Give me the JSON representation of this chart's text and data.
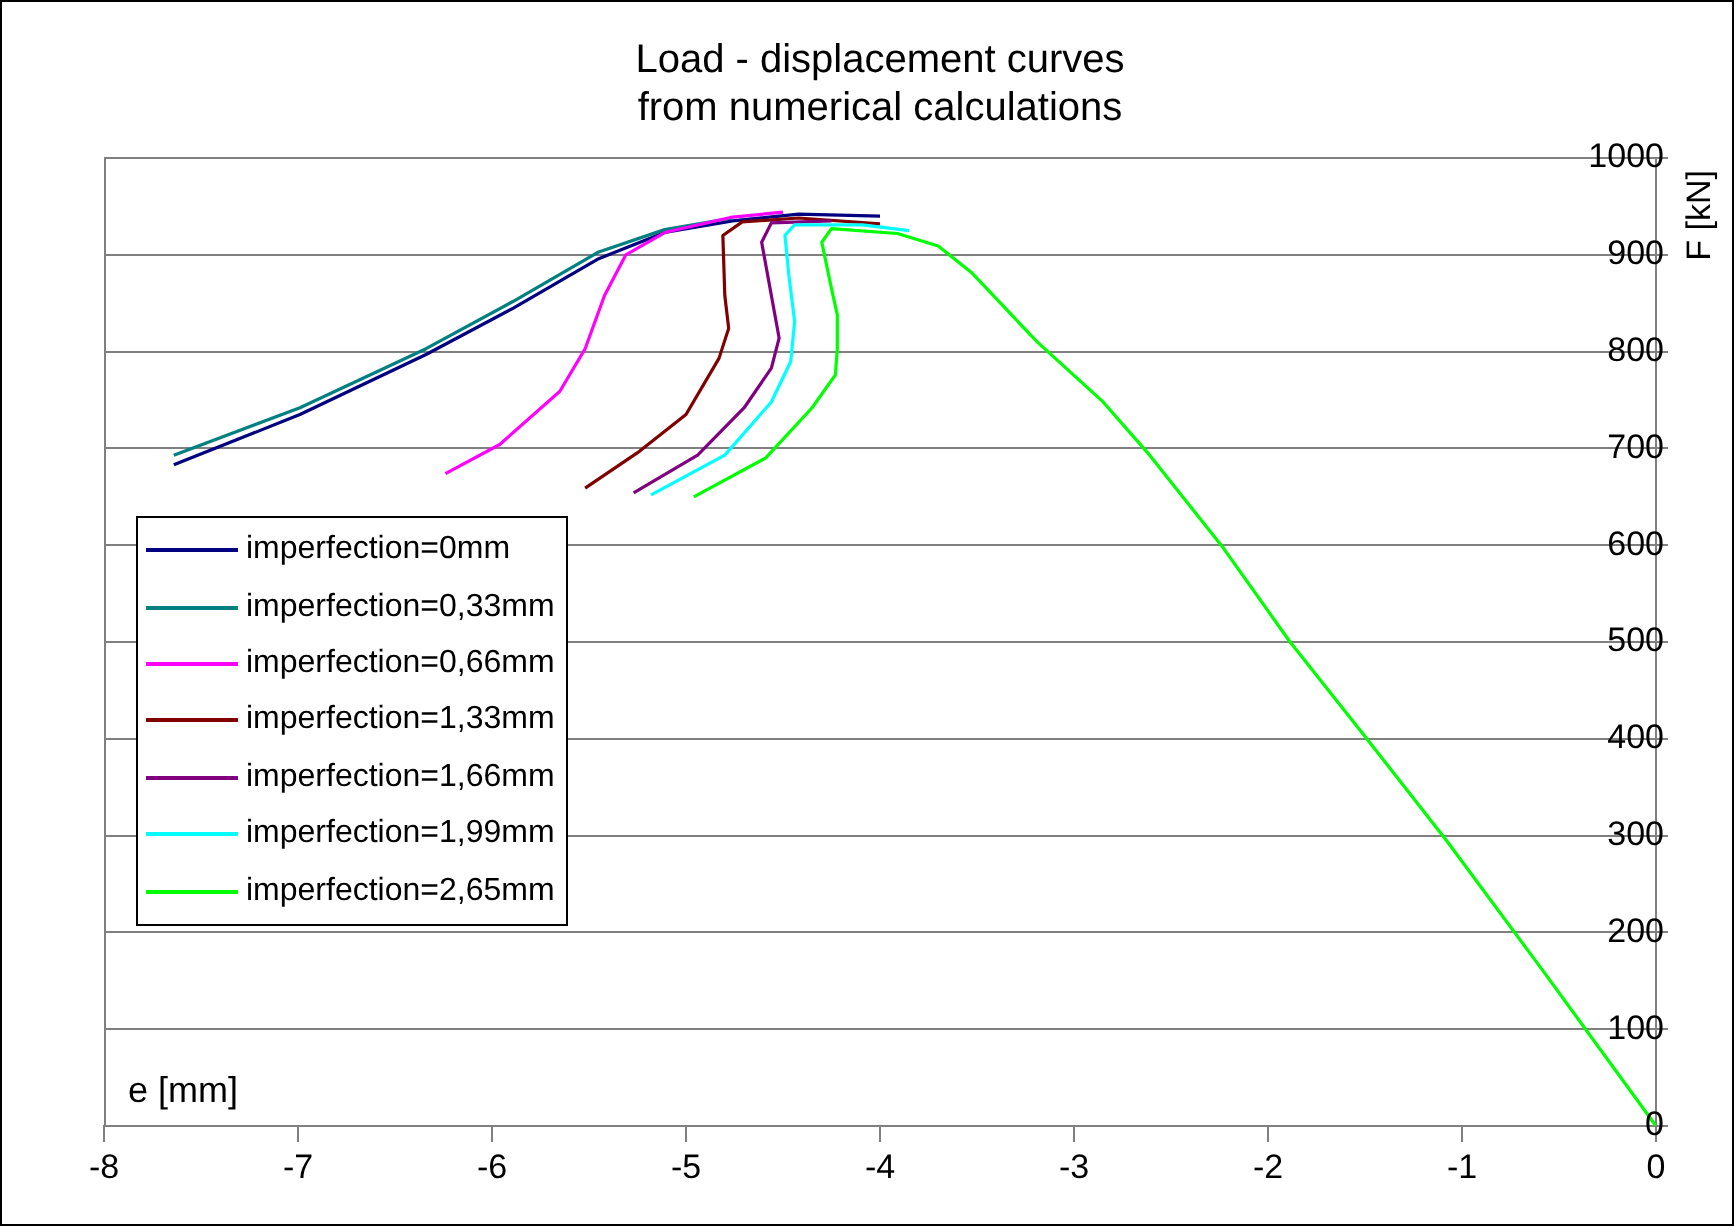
{
  "chart_data": {
    "type": "line",
    "title": "Load - displacement curves\nfrom numerical calculations",
    "xlabel": "e [mm]",
    "ylabel": "F [kN]",
    "xlim": [
      -8,
      0
    ],
    "xticks": [
      -8,
      -7,
      -6,
      -5,
      -4,
      -3,
      -2,
      -1,
      0
    ],
    "ylim": [
      0,
      1000
    ],
    "yticks": [
      0,
      100,
      200,
      300,
      400,
      500,
      600,
      700,
      800,
      900,
      1000
    ],
    "grid": "y",
    "legend": "bottom left",
    "marker": "none",
    "line_style": "solid",
    "series": [
      {
        "name": "imperfection=0mm",
        "color": "#000080",
        "x": [
          -7.64,
          -6.99,
          -6.34,
          -5.89,
          -5.45,
          -5.11,
          -4.76,
          -4.42,
          -4.0
        ],
        "values": [
          683,
          735,
          797,
          845,
          896,
          923,
          935,
          942,
          940
        ]
      },
      {
        "name": "imperfection=0,33mm",
        "color": "#008080",
        "x": [
          -7.64,
          -6.99,
          -6.34,
          -5.89,
          -5.45,
          -5.11,
          -4.76
        ],
        "values": [
          693,
          742,
          803,
          852,
          903,
          926,
          938
        ]
      },
      {
        "name": "imperfection=0,66mm",
        "color": "#ff00ff",
        "x": [
          -6.24,
          -5.96,
          -5.65,
          -5.52,
          -5.42,
          -5.31,
          -5.11,
          -4.76,
          -4.5
        ],
        "values": [
          674,
          704,
          759,
          803,
          858,
          900,
          923,
          939,
          944
        ]
      },
      {
        "name": "imperfection=1,33mm",
        "color": "#800000",
        "x": [
          -5.52,
          -5.24,
          -5.0,
          -4.83,
          -4.78,
          -4.8,
          -4.81,
          -4.71,
          -4.42,
          -4.0
        ],
        "values": [
          659,
          697,
          735,
          793,
          824,
          858,
          920,
          934,
          938,
          932
        ]
      },
      {
        "name": "imperfection=1,66mm",
        "color": "#800080",
        "x": [
          -5.27,
          -4.94,
          -4.7,
          -4.56,
          -4.52,
          -4.56,
          -4.61,
          -4.56,
          -4.25
        ],
        "values": [
          654,
          693,
          742,
          783,
          814,
          858,
          913,
          933,
          935
        ]
      },
      {
        "name": "imperfection=1,99mm",
        "color": "#00ffff",
        "x": [
          -5.18,
          -4.8,
          -4.56,
          -4.46,
          -4.44,
          -4.47,
          -4.49,
          -4.44,
          -4.09,
          -3.85
        ],
        "values": [
          652,
          693,
          748,
          790,
          831,
          879,
          920,
          931,
          931,
          925
        ]
      },
      {
        "name": "imperfection=2,65mm",
        "color": "#00ff00",
        "x": [
          -4.96,
          -4.59,
          -4.35,
          -4.23,
          -4.22,
          -4.22,
          -4.25,
          -4.3,
          -4.25,
          -3.91,
          -3.7,
          -3.53,
          -3.19,
          -2.85,
          -2.61,
          -2.23,
          -1.89,
          -1.51,
          -1.08,
          -0.585,
          0
        ],
        "values": [
          650,
          690,
          742,
          776,
          803,
          838,
          865,
          913,
          927,
          922,
          909,
          882,
          810,
          748,
          693,
          597,
          501,
          405,
          295,
          161,
          0
        ]
      }
    ]
  }
}
